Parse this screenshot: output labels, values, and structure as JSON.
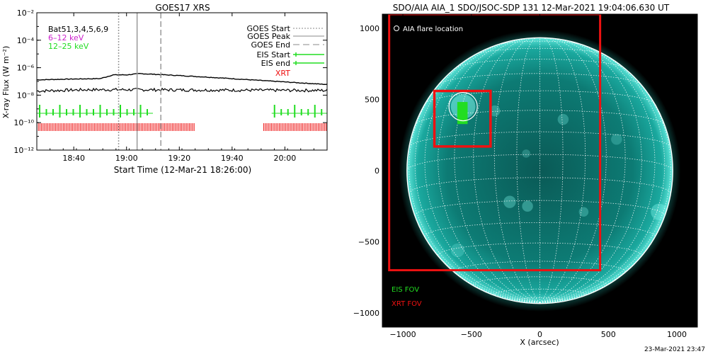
{
  "colors": {
    "xrt": "#ee1111",
    "eis": "#22dd22",
    "low_band": "#cc22cc",
    "high_band": "#22dd22",
    "flux": "#000000",
    "sun_disk": "#0e8a82",
    "sun_limb": "#6ff0e6",
    "bg": "#ffffff"
  },
  "chart_data": [
    {
      "type": "line",
      "title": "GOES17 XRS",
      "xlabel": "Start Time (12-Mar-21 18:26:00)",
      "ylabel": "X-ray Flux (W m⁻²)",
      "ylog": true,
      "xlim": [
        "18:26",
        "20:16"
      ],
      "ylim": [
        1e-12,
        0.01
      ],
      "x_ticks": [
        "18:40",
        "19:00",
        "19:20",
        "19:40",
        "20:00"
      ],
      "y_ticks": [
        {
          "exp": -12,
          "label": "10⁻¹²"
        },
        {
          "exp": -10,
          "label": "10⁻¹⁰"
        },
        {
          "exp": -8,
          "label": "10⁻⁸"
        },
        {
          "exp": -6,
          "label": "10⁻⁶"
        },
        {
          "exp": -4,
          "label": "10⁻⁴"
        },
        {
          "exp": -2,
          "label": "10⁻²"
        }
      ],
      "legend_bands": {
        "overlap_text": "Bat51,3,4,5,6,9",
        "low": "6–12 keV",
        "high": "12–25 keV"
      },
      "legend_events": [
        {
          "label": "GOES Start",
          "style": "dotted"
        },
        {
          "label": "GOES Peak",
          "style": "solid"
        },
        {
          "label": "GOES End",
          "style": "dashed"
        },
        {
          "label": "EIS Start",
          "style": "eis"
        },
        {
          "label": "EIS end",
          "style": "eis"
        },
        {
          "label": "XRT",
          "style": "xrt"
        }
      ],
      "events": {
        "goes_start": "18:57",
        "goes_peak": "19:04",
        "goes_end": "19:13"
      },
      "series": [
        {
          "name": "6–12 keV",
          "x": [
            "18:26",
            "18:40",
            "18:50",
            "18:55",
            "19:00",
            "19:05",
            "19:15",
            "19:30",
            "19:50",
            "20:10",
            "20:16"
          ],
          "y": [
            1.3e-07,
            1.5e-07,
            1.6e-07,
            3e-07,
            3e-07,
            3.7e-07,
            3e-07,
            2.1e-07,
            1.2e-07,
            7e-08,
            6e-08
          ]
        },
        {
          "name": "12–25 keV",
          "x": [
            "18:26",
            "18:45",
            "19:00",
            "19:20",
            "19:45",
            "20:16"
          ],
          "y": [
            2e-08,
            2.5e-08,
            2.5e-08,
            2.4e-08,
            2.3e-08,
            2.2e-08
          ]
        }
      ],
      "eis_intervals": [
        [
          "18:26",
          "19:10"
        ],
        [
          "19:55",
          "20:16"
        ]
      ],
      "xrt_intervals": [
        [
          "18:26",
          "19:26"
        ],
        [
          "19:52",
          "20:16"
        ]
      ]
    },
    {
      "type": "image",
      "title": "SDO/AIA AIA_1 SDO/JSOC-SDP 131 12-Mar-2021 19:04:06.630 UT",
      "xlabel": "X (arcsec)",
      "xlim": [
        -1150,
        1150
      ],
      "ylim": [
        -1100,
        1100
      ],
      "x_ticks": [
        -1000,
        -500,
        0,
        500,
        1000
      ],
      "y_ticks": [
        -1000,
        -500,
        0,
        500,
        1000
      ],
      "solar_radius_arcsec": 970,
      "flare_location_label": "AIA flare location",
      "flare_location": [
        -560,
        450
      ],
      "xrt_fov_large": {
        "x": [
          -1100,
          440
        ],
        "y": [
          -700,
          1100
        ]
      },
      "xrt_fov_small": {
        "x": [
          -770,
          -360
        ],
        "y": [
          170,
          560
        ]
      },
      "eis_fov": {
        "x": [
          -600,
          -530
        ],
        "y": [
          330,
          480
        ]
      },
      "legend": [
        "EIS FOV",
        "XRT FOV"
      ],
      "footer_timestamp": "23-Mar-2021 23:47"
    }
  ]
}
